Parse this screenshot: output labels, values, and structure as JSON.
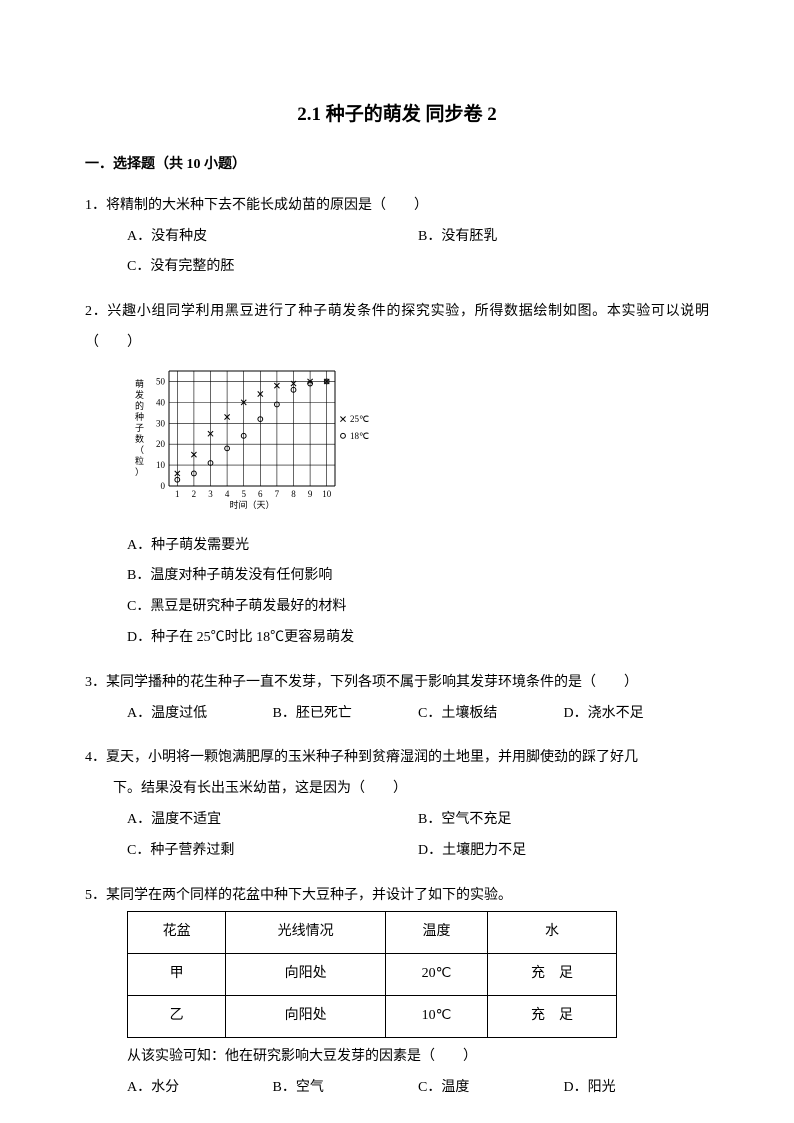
{
  "title": "2.1 种子的萌发  同步卷 2",
  "section_header": "一．选择题（共 10 小题）",
  "q1": {
    "text": "1．将精制的大米种下去不能长成幼苗的原因是（　　）",
    "A": "A．没有种皮",
    "B": "B．没有胚乳",
    "C": "C．没有完整的胚"
  },
  "q2": {
    "text": "2．兴趣小组同学利用黑豆进行了种子萌发条件的探究实验，所得数据绘制如图。本实验可以说明（　　）",
    "A": "A．种子萌发需要光",
    "B": "B．温度对种子萌发没有任何影响",
    "C": "C．黑豆是研究种子萌发最好的材料",
    "D": "D．种子在 25℃时比 18℃更容易萌发",
    "chart": {
      "type": "scatter",
      "ylabel": "萌发的种子数（粒）",
      "xlabel": "时间（天）",
      "y_ticks": [
        0,
        10,
        20,
        30,
        40,
        50
      ],
      "x_ticks": [
        1,
        2,
        3,
        4,
        5,
        6,
        7,
        8,
        9,
        10
      ],
      "xlim": [
        0.5,
        10.5
      ],
      "ylim": [
        0,
        55
      ],
      "legend": [
        {
          "marker": "x",
          "label": "25℃"
        },
        {
          "marker": "o",
          "label": "18℃"
        }
      ],
      "series_25": {
        "marker": "x",
        "points": [
          [
            1,
            6
          ],
          [
            2,
            15
          ],
          [
            3,
            25
          ],
          [
            4,
            33
          ],
          [
            5,
            40
          ],
          [
            6,
            44
          ],
          [
            7,
            48
          ],
          [
            8,
            49
          ],
          [
            9,
            50
          ],
          [
            10,
            50
          ]
        ]
      },
      "series_18": {
        "marker": "o",
        "points": [
          [
            1,
            3
          ],
          [
            2,
            6
          ],
          [
            3,
            11
          ],
          [
            4,
            18
          ],
          [
            5,
            24
          ],
          [
            6,
            32
          ],
          [
            7,
            39
          ],
          [
            8,
            46
          ],
          [
            9,
            49
          ],
          [
            10,
            50
          ]
        ]
      },
      "grid_color": "#000000",
      "background_color": "#ffffff",
      "font_size": 9
    }
  },
  "q3": {
    "text": "3．某同学播种的花生种子一直不发芽，下列各项不属于影响其发芽环境条件的是（　　）",
    "A": "A．温度过低",
    "B": "B．胚已死亡",
    "C": "C．土壤板结",
    "D": "D．浇水不足"
  },
  "q4": {
    "text1": "4．夏天，小明将一颗饱满肥厚的玉米种子种到贫瘠湿润的土地里，并用脚使劲的踩了好几",
    "text2": "下。结果没有长出玉米幼苗，这是因为（　　）",
    "A": "A．温度不适宜",
    "B": "B．空气不充足",
    "C": "C．种子营养过剩",
    "D": "D．土壤肥力不足"
  },
  "q5": {
    "text": "5．某同学在两个同样的花盆中种下大豆种子，并设计了如下的实验。",
    "table": {
      "columns": [
        "花盆",
        "光线情况",
        "温度",
        "水"
      ],
      "rows": [
        [
          "甲",
          "向阳处",
          "20℃",
          "充　足"
        ],
        [
          "乙",
          "向阳处",
          "10℃",
          "充　足"
        ]
      ]
    },
    "followup": "从该实验可知：他在研究影响大豆发芽的因素是（　　）",
    "A": "A．水分",
    "B": "B．空气",
    "C": "C．温度",
    "D": "D．阳光"
  }
}
